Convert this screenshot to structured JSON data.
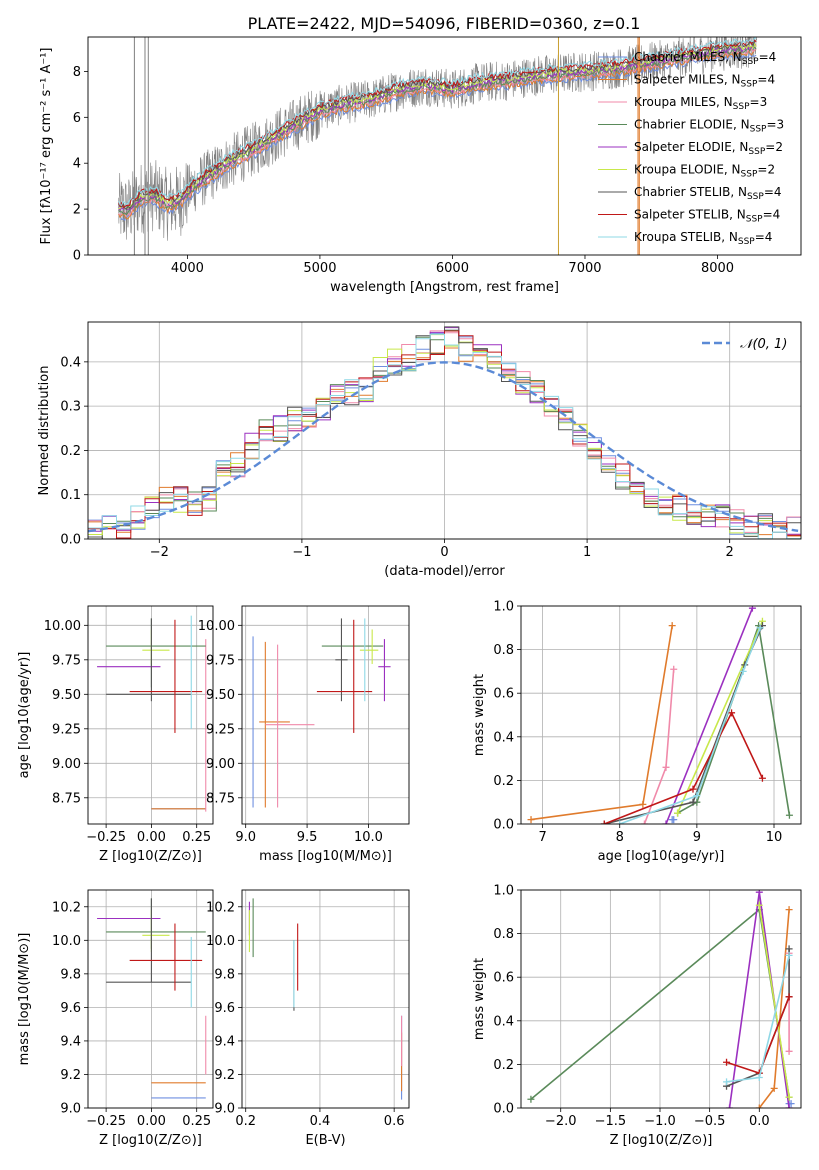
{
  "figure_title": "PLATE=2422, MJD=54096, FIBERID=0360, z=0.1",
  "model_colors": [
    "#6f8fe0",
    "#e07b2c",
    "#f08aaa",
    "#5a8a5a",
    "#9b30c0",
    "#c8e84a",
    "#555555",
    "#c01818",
    "#8fd8e6"
  ],
  "chart_data": [
    {
      "id": "spectrum",
      "type": "line",
      "title": "PLATE=2422, MJD=54096, FIBERID=0360, z=0.1",
      "xlabel": "wavelength [Angstrom, rest frame]",
      "ylabel": "Flux [fλ10⁻¹⁷ erg cm⁻² s⁻¹ A⁻¹]",
      "xlim": [
        3250,
        8630
      ],
      "ylim": [
        0,
        9.5
      ],
      "xticks": [
        4000,
        5000,
        6000,
        7000,
        8000
      ],
      "yticks": [
        0,
        2,
        4,
        6,
        8
      ],
      "grid": false,
      "legend_placement": "right",
      "continuum": {
        "x": [
          3480,
          3550,
          3650,
          3750,
          3850,
          3950,
          4050,
          4150,
          4300,
          4500,
          4700,
          4850,
          5000,
          5200,
          5400,
          5600,
          5800,
          6000,
          6200,
          6400,
          6600,
          6800,
          7000,
          7200,
          7400,
          7600,
          7800,
          8000,
          8200,
          8300
        ],
        "y": [
          2.0,
          1.9,
          2.5,
          2.6,
          2.2,
          2.4,
          3.0,
          3.4,
          4.0,
          4.6,
          5.3,
          5.8,
          6.3,
          6.6,
          6.8,
          7.2,
          7.4,
          7.2,
          7.5,
          7.6,
          7.8,
          7.9,
          8.0,
          8.1,
          8.3,
          8.5,
          8.7,
          8.9,
          9.0,
          9.1
        ]
      },
      "spikes": [
        3600,
        3680,
        3705,
        6800,
        7400,
        7410
      ],
      "series": [
        {
          "name": "Chabrier MILES, N",
          "sub": "SSP",
          "suffix": "=4"
        },
        {
          "name": "Salpeter MILES, N",
          "sub": "SSP",
          "suffix": "=4"
        },
        {
          "name": "Kroupa MILES, N",
          "sub": "SSP",
          "suffix": "=3"
        },
        {
          "name": "Chabrier ELODIE, N",
          "sub": "SSP",
          "suffix": "=3"
        },
        {
          "name": "Salpeter ELODIE, N",
          "sub": "SSP",
          "suffix": "=2"
        },
        {
          "name": "Kroupa ELODIE, N",
          "sub": "SSP",
          "suffix": "=2"
        },
        {
          "name": "Chabrier STELIB, N",
          "sub": "SSP",
          "suffix": "=4"
        },
        {
          "name": "Salpeter STELIB, N",
          "sub": "SSP",
          "suffix": "=4"
        },
        {
          "name": "Kroupa STELIB, N",
          "sub": "SSP",
          "suffix": "=4"
        }
      ]
    },
    {
      "id": "residuals",
      "type": "histogram",
      "xlabel": "(data-model)/error",
      "ylabel": "Normed distribution",
      "xlim": [
        -2.5,
        2.5
      ],
      "ylim": [
        0,
        0.49
      ],
      "xticks": [
        -2,
        -1,
        0,
        1,
        2
      ],
      "yticks": [
        0.0,
        0.1,
        0.2,
        0.3,
        0.4
      ],
      "grid": true,
      "legend_placement": "top-right",
      "legend": [
        "𝒩(0, 1)"
      ],
      "bin_edges_start": -2.5,
      "bin_width": 0.1,
      "reference_values": [
        0.02,
        0.025,
        0.03,
        0.05,
        0.07,
        0.09,
        0.09,
        0.08,
        0.09,
        0.17,
        0.17,
        0.21,
        0.24,
        0.25,
        0.27,
        0.28,
        0.29,
        0.32,
        0.33,
        0.34,
        0.38,
        0.4,
        0.41,
        0.43,
        0.44,
        0.45,
        0.43,
        0.42,
        0.41,
        0.38,
        0.35,
        0.33,
        0.3,
        0.27,
        0.23,
        0.21,
        0.17,
        0.14,
        0.12,
        0.1,
        0.08,
        0.07,
        0.06,
        0.05,
        0.05,
        0.04,
        0.03,
        0.03,
        0.02,
        0.02
      ]
    },
    {
      "id": "age_vs_Z",
      "type": "errorbar",
      "xlabel": "Z [log10(Z/Z⊙)]",
      "ylabel": "age  [log10(age/yr)]",
      "xlim": [
        -0.35,
        0.34
      ],
      "ylim": [
        8.56,
        10.14
      ],
      "xticks": [
        -0.25,
        0.0,
        0.25
      ],
      "yticks": [
        8.75,
        9.0,
        9.25,
        9.5,
        9.75,
        10.0
      ],
      "grid": true,
      "points": [
        {
          "x": 0.15,
          "xerr": [
            0.15,
            0.15
          ],
          "y": 8.67,
          "yerr": [
            0.0,
            0.0
          ]
        },
        {
          "x": 0.15,
          "xerr": [
            0.15,
            0.15
          ],
          "y": 8.67,
          "yerr": [
            0.0,
            0.0
          ]
        },
        {
          "x": 0.3,
          "xerr": [
            0.0,
            0.0
          ],
          "y": 9.3,
          "yerr": [
            0.65,
            0.6
          ]
        },
        {
          "x": 0.0,
          "xerr": [
            0.25,
            0.3
          ],
          "y": 9.85,
          "yerr": [
            0.3,
            0.2
          ]
        },
        {
          "x": -0.1,
          "xerr": [
            0.2,
            0.15
          ],
          "y": 9.7,
          "yerr": [
            0.0,
            0.0
          ]
        },
        {
          "x": 0.0,
          "xerr": [
            0.05,
            0.1
          ],
          "y": 9.82,
          "yerr": [
            0.1,
            0.15
          ]
        },
        {
          "x": 0.0,
          "xerr": [
            0.25,
            0.22
          ],
          "y": 9.5,
          "yerr": [
            0.05,
            0.55
          ]
        },
        {
          "x": 0.13,
          "xerr": [
            0.25,
            0.15
          ],
          "y": 9.52,
          "yerr": [
            0.3,
            0.52
          ]
        },
        {
          "x": 0.22,
          "xerr": [
            0.0,
            0.0
          ],
          "y": 9.65,
          "yerr": [
            0.4,
            0.42
          ]
        }
      ]
    },
    {
      "id": "age_vs_mass",
      "type": "errorbar",
      "xlabel": "mass [log10(M/M⊙)]",
      "xlim": [
        8.97,
        10.33
      ],
      "ylim": [
        8.56,
        10.14
      ],
      "xticks": [
        9.0,
        9.5,
        10.0
      ],
      "yticks": [
        8.75,
        9.0,
        9.25,
        9.5,
        9.75,
        10.0
      ],
      "grid": true,
      "points": [
        {
          "x": 9.06,
          "xerr": [
            0.0,
            0.0
          ],
          "y": 9.3,
          "yerr": [
            0.62,
            0.62
          ]
        },
        {
          "x": 9.16,
          "xerr": [
            0.05,
            0.2
          ],
          "y": 9.3,
          "yerr": [
            0.62,
            0.58
          ]
        },
        {
          "x": 9.26,
          "xerr": [
            0.1,
            0.3
          ],
          "y": 9.28,
          "yerr": [
            0.6,
            0.58
          ]
        },
        {
          "x": 9.87,
          "xerr": [
            0.25,
            0.25
          ],
          "y": 9.85,
          "yerr": [
            0.0,
            0.0
          ]
        },
        {
          "x": 10.13,
          "xerr": [
            0.05,
            0.05
          ],
          "y": 9.7,
          "yerr": [
            0.25,
            0.2
          ]
        },
        {
          "x": 10.03,
          "xerr": [
            0.1,
            0.05
          ],
          "y": 9.82,
          "yerr": [
            0.1,
            0.15
          ]
        },
        {
          "x": 9.78,
          "xerr": [
            0.05,
            0.05
          ],
          "y": 9.75,
          "yerr": [
            0.3,
            0.3
          ]
        },
        {
          "x": 9.88,
          "xerr": [
            0.3,
            0.15
          ],
          "y": 9.52,
          "yerr": [
            0.3,
            0.52
          ]
        },
        {
          "x": 9.97,
          "xerr": [
            0.0,
            0.0
          ],
          "y": 9.75,
          "yerr": [
            0.3,
            0.3
          ]
        }
      ]
    },
    {
      "id": "weights_vs_age",
      "type": "line",
      "xlabel": "age  [log10(age/yr)]",
      "ylabel": "mass weight",
      "xlim": [
        6.72,
        10.35
      ],
      "ylim": [
        0.0,
        1.0
      ],
      "xticks": [
        7,
        8,
        9,
        10
      ],
      "yticks": [
        0.0,
        0.2,
        0.4,
        0.6,
        0.8,
        1.0
      ],
      "grid": true,
      "series": [
        {
          "x": [
            8.68,
            8.7
          ],
          "y": [
            0.02,
            0.02
          ]
        },
        {
          "x": [
            6.85,
            8.3,
            8.68
          ],
          "y": [
            0.02,
            0.09,
            0.91
          ]
        },
        {
          "x": [
            8.32,
            8.6,
            8.7
          ],
          "y": [
            0.0,
            0.26,
            0.71
          ]
        },
        {
          "x": [
            8.75,
            9.0,
            9.8,
            10.2
          ],
          "y": [
            0.05,
            0.1,
            0.91,
            0.04
          ]
        },
        {
          "x": [
            8.6,
            9.72
          ],
          "y": [
            0.0,
            0.99
          ]
        },
        {
          "x": [
            8.75,
            9.85
          ],
          "y": [
            0.05,
            0.93
          ]
        },
        {
          "x": [
            7.8,
            8.95,
            9.62,
            9.85
          ],
          "y": [
            0.0,
            0.1,
            0.73,
            0.91
          ]
        },
        {
          "x": [
            7.8,
            8.95,
            9.45,
            9.85
          ],
          "y": [
            0.0,
            0.16,
            0.51,
            0.21
          ]
        },
        {
          "x": [
            8.0,
            9.0,
            9.6,
            9.82
          ],
          "y": [
            0.0,
            0.13,
            0.7,
            0.9
          ]
        }
      ]
    },
    {
      "id": "mass_vs_Z",
      "type": "errorbar",
      "xlabel": "Z [log10(Z/Z⊙)]",
      "ylabel": "mass [log10(M/M⊙)]",
      "xlim": [
        -0.35,
        0.34
      ],
      "ylim": [
        9.0,
        10.3
      ],
      "xticks": [
        -0.25,
        0.0,
        0.25
      ],
      "yticks": [
        9.0,
        9.2,
        9.4,
        9.6,
        9.8,
        10.0,
        10.2
      ],
      "grid": true,
      "points": [
        {
          "x": 0.15,
          "xerr": [
            0.15,
            0.15
          ],
          "y": 9.06,
          "yerr": [
            0.0,
            0.0
          ]
        },
        {
          "x": 0.15,
          "xerr": [
            0.15,
            0.15
          ],
          "y": 9.15,
          "yerr": [
            0.0,
            0.0
          ]
        },
        {
          "x": 0.3,
          "xerr": [
            0.0,
            0.0
          ],
          "y": 9.3,
          "yerr": [
            0.1,
            0.25
          ]
        },
        {
          "x": 0.0,
          "xerr": [
            0.25,
            0.3
          ],
          "y": 10.05,
          "yerr": [
            0.1,
            0.2
          ]
        },
        {
          "x": -0.1,
          "xerr": [
            0.2,
            0.15
          ],
          "y": 10.13,
          "yerr": [
            0.0,
            0.0
          ]
        },
        {
          "x": 0.0,
          "xerr": [
            0.05,
            0.1
          ],
          "y": 10.03,
          "yerr": [
            0.1,
            0.15
          ]
        },
        {
          "x": 0.0,
          "xerr": [
            0.25,
            0.22
          ],
          "y": 9.75,
          "yerr": [
            0.0,
            0.5
          ]
        },
        {
          "x": 0.13,
          "xerr": [
            0.25,
            0.15
          ],
          "y": 9.88,
          "yerr": [
            0.18,
            0.22
          ]
        },
        {
          "x": 0.22,
          "xerr": [
            0.0,
            0.0
          ],
          "y": 9.8,
          "yerr": [
            0.2,
            0.22
          ]
        }
      ]
    },
    {
      "id": "mass_vs_ebv",
      "type": "errorbar",
      "xlabel": "E(B-V)",
      "xlim": [
        0.19,
        0.64
      ],
      "ylim": [
        9.0,
        10.3
      ],
      "xticks": [
        0.2,
        0.4,
        0.6
      ],
      "yticks": [
        9.0,
        9.2,
        9.4,
        9.6,
        9.8,
        10.0,
        10.2
      ],
      "grid": true,
      "points": [
        {
          "x": 0.62,
          "xerr": [
            0.0,
            0.0
          ],
          "y": 9.3,
          "yerr": [
            0.25,
            0.25
          ]
        },
        {
          "x": 0.62,
          "xerr": [
            0.0,
            0.0
          ],
          "y": 9.3,
          "yerr": [
            0.2,
            0.15
          ]
        },
        {
          "x": 0.62,
          "xerr": [
            0.0,
            0.0
          ],
          "y": 9.35,
          "yerr": [
            0.1,
            0.2
          ]
        },
        {
          "x": 0.22,
          "xerr": [
            0.0,
            0.0
          ],
          "y": 10.05,
          "yerr": [
            0.15,
            0.2
          ]
        },
        {
          "x": 0.21,
          "xerr": [
            0.0,
            0.0
          ],
          "y": 10.13,
          "yerr": [
            0.1,
            0.1
          ]
        },
        {
          "x": 0.21,
          "xerr": [
            0.0,
            0.0
          ],
          "y": 10.03,
          "yerr": [
            0.1,
            0.15
          ]
        },
        {
          "x": 0.33,
          "xerr": [
            0.0,
            0.0
          ],
          "y": 9.75,
          "yerr": [
            0.17,
            0.25
          ]
        },
        {
          "x": 0.34,
          "xerr": [
            0.0,
            0.0
          ],
          "y": 9.88,
          "yerr": [
            0.18,
            0.22
          ]
        },
        {
          "x": 0.33,
          "xerr": [
            0.0,
            0.0
          ],
          "y": 9.8,
          "yerr": [
            0.2,
            0.2
          ]
        }
      ]
    },
    {
      "id": "weights_vs_Z",
      "type": "line",
      "xlabel": "Z [log10(Z/Z⊙)]",
      "ylabel": "mass weight",
      "xlim": [
        -2.4,
        0.42
      ],
      "ylim": [
        0.0,
        1.0
      ],
      "xticks": [
        -2.0,
        -1.5,
        -1.0,
        -0.5,
        0.0
      ],
      "yticks": [
        0.0,
        0.2,
        0.4,
        0.6,
        0.8,
        1.0
      ],
      "grid": true,
      "series": [
        {
          "x": [
            0.3,
            0.32
          ],
          "y": [
            0.02,
            0.02
          ]
        },
        {
          "x": [
            0.0,
            0.15,
            0.3
          ],
          "y": [
            0.0,
            0.09,
            0.91
          ]
        },
        {
          "x": [
            0.3,
            0.3
          ],
          "y": [
            0.26,
            0.71
          ]
        },
        {
          "x": [
            -2.3,
            0.0,
            0.3
          ],
          "y": [
            0.04,
            0.91,
            0.05
          ]
        },
        {
          "x": [
            -0.3,
            0.0,
            0.3
          ],
          "y": [
            0.0,
            0.99,
            0.0
          ]
        },
        {
          "x": [
            0.0,
            0.3
          ],
          "y": [
            0.93,
            0.05
          ]
        },
        {
          "x": [
            -0.33,
            0.0,
            0.3,
            0.3
          ],
          "y": [
            0.1,
            0.16,
            0.51,
            0.73
          ]
        },
        {
          "x": [
            -0.33,
            0.0,
            0.3
          ],
          "y": [
            0.21,
            0.16,
            0.51
          ]
        },
        {
          "x": [
            -0.33,
            0.0,
            0.3
          ],
          "y": [
            0.12,
            0.14,
            0.7
          ]
        }
      ]
    }
  ]
}
